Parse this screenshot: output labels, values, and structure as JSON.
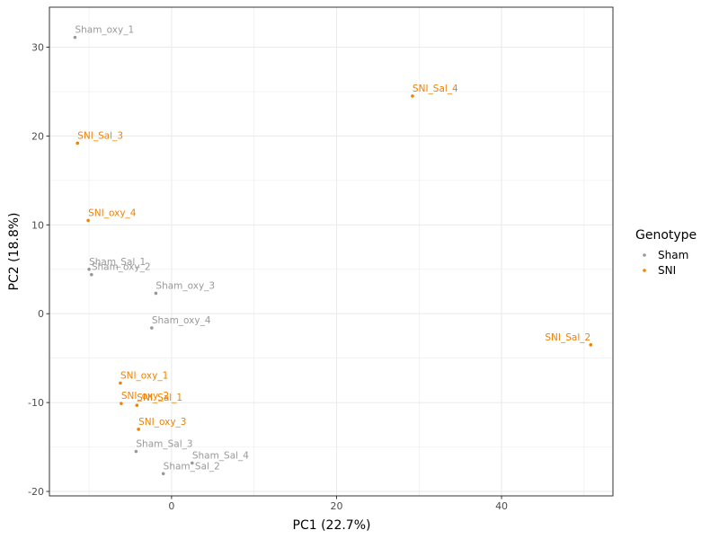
{
  "chart_data": {
    "type": "scatter",
    "xlabel": "PC1 (22.7%)",
    "ylabel": "PC2 (18.8%)",
    "xlim": [
      -14.8,
      53.5
    ],
    "ylim": [
      -20.5,
      34.5
    ],
    "x_ticks": [
      0,
      20,
      40
    ],
    "y_ticks": [
      -20,
      -10,
      0,
      10,
      20,
      30
    ],
    "grid": true,
    "legend": {
      "title": "Genotype",
      "placement": "right",
      "entries": [
        {
          "name": "Sham",
          "color": "#999999"
        },
        {
          "name": "SNI",
          "color": "#f28100"
        }
      ]
    },
    "series": [
      {
        "name": "Sham",
        "color": "#999999",
        "points": [
          {
            "label": "Sham_oxy_1",
            "x": -11.7,
            "y": 31.1
          },
          {
            "label": "Sham_Sal_1",
            "x": -10.0,
            "y": 5.0
          },
          {
            "label": "Sham_oxy_2",
            "x": -9.7,
            "y": 4.4
          },
          {
            "label": "Sham_oxy_3",
            "x": -1.9,
            "y": 2.3
          },
          {
            "label": "Sham_oxy_4",
            "x": -2.4,
            "y": -1.6
          },
          {
            "label": "Sham_Sal_3",
            "x": -4.3,
            "y": -15.5
          },
          {
            "label": "Sham_Sal_4",
            "x": 2.5,
            "y": -16.8
          },
          {
            "label": "Sham_Sal_2",
            "x": -1.0,
            "y": -18.0
          }
        ]
      },
      {
        "name": "SNI",
        "color": "#f28100",
        "points": [
          {
            "label": "SNI_Sal_4",
            "x": 29.2,
            "y": 24.5
          },
          {
            "label": "SNI_Sal_3",
            "x": -11.4,
            "y": 19.2
          },
          {
            "label": "SNI_oxy_4",
            "x": -10.1,
            "y": 10.5
          },
          {
            "label": "SNI_Sal_2",
            "x": 50.8,
            "y": -3.5
          },
          {
            "label": "SNI_oxy_1",
            "x": -6.2,
            "y": -7.8
          },
          {
            "label": "SNI_oxy_2",
            "x": -6.1,
            "y": -10.1
          },
          {
            "label": "SNI_Sal_1",
            "x": -4.2,
            "y": -10.3
          },
          {
            "label": "SNI_oxy_3",
            "x": -4.0,
            "y": -13.0
          }
        ]
      }
    ]
  }
}
